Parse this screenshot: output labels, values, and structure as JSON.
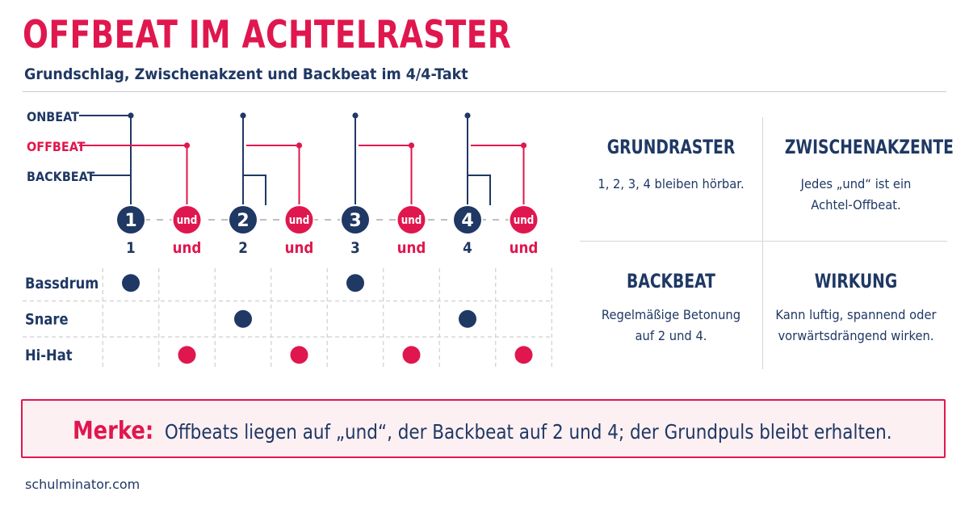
{
  "title": "OFFBEAT IM ACHTELRASTER",
  "subtitle": "Grundschlag, Zwischenakzent und Backbeat im 4/4-Takt",
  "colors": {
    "navy": "#1f3864",
    "pink": "#e0174e",
    "grid": "#c9c9c9"
  },
  "legend": {
    "onbeat": "ONBEAT",
    "offbeat": "OFFBEAT",
    "backbeat": "BACKBEAT"
  },
  "beats": [
    {
      "circle": "1",
      "below": "1",
      "kind": "on"
    },
    {
      "circle": "und",
      "below": "und",
      "kind": "off"
    },
    {
      "circle": "2",
      "below": "2",
      "kind": "on"
    },
    {
      "circle": "und",
      "below": "und",
      "kind": "off"
    },
    {
      "circle": "3",
      "below": "3",
      "kind": "on"
    },
    {
      "circle": "und",
      "below": "und",
      "kind": "off"
    },
    {
      "circle": "4",
      "below": "4",
      "kind": "on"
    },
    {
      "circle": "und",
      "below": "und",
      "kind": "off"
    }
  ],
  "backbeat_positions": [
    2,
    4
  ],
  "instruments": [
    {
      "name": "Bassdrum",
      "hits": [
        1,
        5
      ],
      "color": "navy"
    },
    {
      "name": "Snare",
      "hits": [
        3,
        7
      ],
      "color": "navy"
    },
    {
      "name": "Hi-Hat",
      "hits": [
        2,
        4,
        6,
        8
      ],
      "color": "pink"
    }
  ],
  "info": {
    "grundraster": {
      "title": "GRUNDRASTER",
      "text": "1, 2, 3, 4 bleiben hörbar."
    },
    "zwischenakzente": {
      "title": "ZWISCHENAKZENTE",
      "line1": "Jedes „und“ ist ein",
      "line2": "Achtel-Offbeat."
    },
    "backbeat": {
      "title": "BACKBEAT",
      "line1": "Regelmäßige Betonung",
      "line2": "auf 2 und 4."
    },
    "wirkung": {
      "title": "WIRKUNG",
      "line1": "Kann luftig, spannend oder",
      "line2": "vorwärtsdrängend wirken."
    }
  },
  "merke": {
    "label": "Merke:",
    "text": "Offbeats liegen auf „und“, der Backbeat auf 2 und 4; der Grundpuls bleibt erhalten."
  },
  "footer": "schulminator.com"
}
